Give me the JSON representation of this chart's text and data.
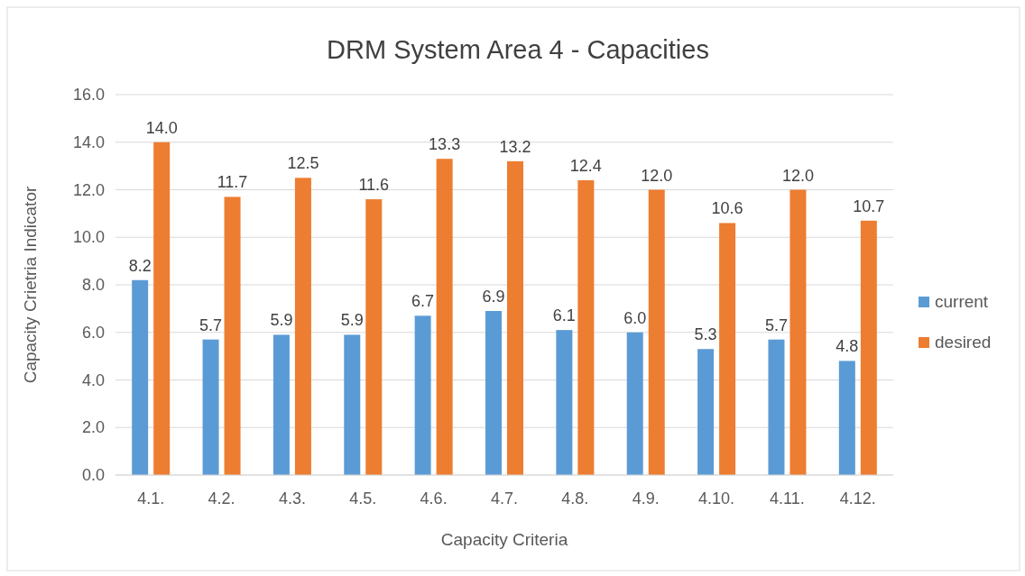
{
  "chart_data": {
    "type": "bar",
    "title": "DRM System Area 4 - Capacities",
    "xlabel": "Capacity Criteria",
    "ylabel": "Capacity Crietria Indicator",
    "categories": [
      "4.1.",
      "4.2.",
      "4.3.",
      "4.5.",
      "4.6.",
      "4.7.",
      "4.8.",
      "4.9.",
      "4.10.",
      "4.11.",
      "4.12."
    ],
    "series": [
      {
        "name": "current",
        "color": "#5b9bd5",
        "values": [
          8.2,
          5.7,
          5.9,
          5.9,
          6.7,
          6.9,
          6.1,
          6.0,
          5.3,
          5.7,
          4.8
        ],
        "value_labels": [
          "8.2",
          "5.7",
          "5.9",
          "5.9",
          "6.7",
          "6.9",
          "6.1",
          "6.0",
          "5.3",
          "5.7",
          "4.8"
        ]
      },
      {
        "name": "desired",
        "color": "#ed7d31",
        "values": [
          14.0,
          11.7,
          12.5,
          11.6,
          13.3,
          13.2,
          12.4,
          12.0,
          10.6,
          12.0,
          10.7
        ],
        "value_labels": [
          "14.0",
          "11.7",
          "12.5",
          "11.6",
          "13.3",
          "13.2",
          "12.4",
          "12.0",
          "10.6",
          "12.0",
          "10.7"
        ]
      }
    ],
    "ylim": [
      0,
      16
    ],
    "yticks": [
      {
        "value": 0,
        "label": "0.0"
      },
      {
        "value": 2,
        "label": "2.0"
      },
      {
        "value": 4,
        "label": "4.0"
      },
      {
        "value": 6,
        "label": "6.0"
      },
      {
        "value": 8,
        "label": "8.0"
      },
      {
        "value": 10,
        "label": "10.0"
      },
      {
        "value": 12,
        "label": "12.0"
      },
      {
        "value": 14,
        "label": "14.0"
      },
      {
        "value": 16,
        "label": "16.0"
      }
    ],
    "grid": "y",
    "legend": "right"
  }
}
